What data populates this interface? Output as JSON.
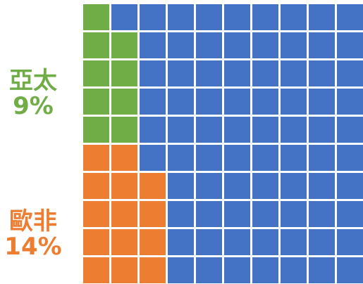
{
  "chart_data": {
    "type": "waffle",
    "rows": 10,
    "cols": 10,
    "segments": [
      {
        "name": "亞太",
        "percent": "9%",
        "value": 9,
        "color": "#70AD47"
      },
      {
        "name": "歐非",
        "percent": "14%",
        "value": 14,
        "color": "#ED7D31"
      }
    ],
    "remainder_color": "#4472C4",
    "cell_owner_by_row": [
      [
        0,
        -1,
        -1,
        -1,
        -1,
        -1,
        -1,
        -1,
        -1,
        -1
      ],
      [
        0,
        0,
        -1,
        -1,
        -1,
        -1,
        -1,
        -1,
        -1,
        -1
      ],
      [
        0,
        0,
        -1,
        -1,
        -1,
        -1,
        -1,
        -1,
        -1,
        -1
      ],
      [
        0,
        0,
        -1,
        -1,
        -1,
        -1,
        -1,
        -1,
        -1,
        -1
      ],
      [
        0,
        0,
        -1,
        -1,
        -1,
        -1,
        -1,
        -1,
        -1,
        -1
      ],
      [
        1,
        1,
        -1,
        -1,
        -1,
        -1,
        -1,
        -1,
        -1,
        -1
      ],
      [
        1,
        1,
        1,
        -1,
        -1,
        -1,
        -1,
        -1,
        -1,
        -1
      ],
      [
        1,
        1,
        1,
        -1,
        -1,
        -1,
        -1,
        -1,
        -1,
        -1
      ],
      [
        1,
        1,
        1,
        -1,
        -1,
        -1,
        -1,
        -1,
        -1,
        -1
      ],
      [
        1,
        1,
        1,
        -1,
        -1,
        -1,
        -1,
        -1,
        -1,
        -1
      ]
    ]
  },
  "labels": {
    "apac": {
      "name": "亞太",
      "pct": "9%",
      "color": "#70AD47"
    },
    "emea": {
      "name": "歐非",
      "pct": "14%",
      "color": "#ED7D31"
    }
  }
}
